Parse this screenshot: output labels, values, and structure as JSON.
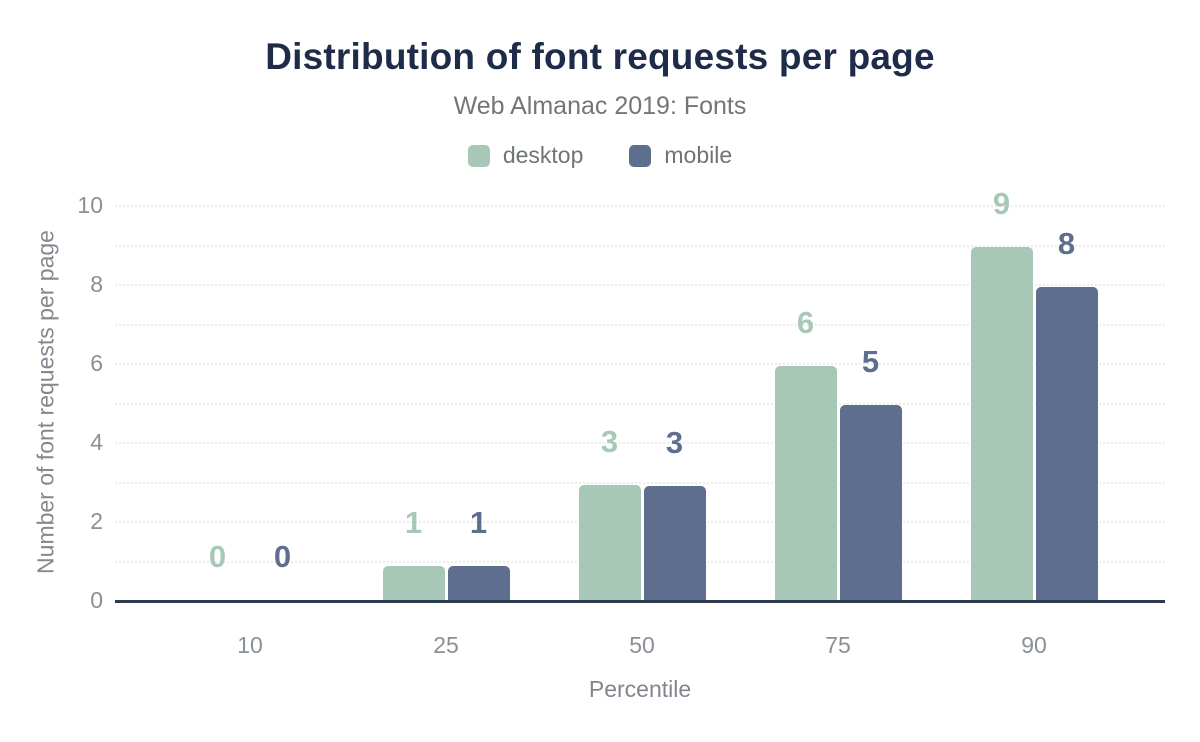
{
  "header": {
    "title": "Distribution of font requests per page",
    "subtitle": "Web Almanac 2019: Fonts"
  },
  "chart_data": {
    "type": "bar",
    "title": "Distribution of font requests per page",
    "subtitle": "Web Almanac 2019: Fonts",
    "categories": [
      "10",
      "25",
      "50",
      "75",
      "90"
    ],
    "series": [
      {
        "name": "desktop",
        "color": "#a7c8b6",
        "values": [
          0,
          1,
          3,
          6,
          9
        ],
        "bar_heights": [
          0,
          0.87,
          2.91,
          5.92,
          8.94
        ]
      },
      {
        "name": "mobile",
        "color": "#5e6e8e",
        "values": [
          0,
          1,
          3,
          5,
          8
        ],
        "bar_heights": [
          0,
          0.85,
          2.88,
          4.94,
          7.92
        ]
      }
    ],
    "xlabel": "Percentile",
    "ylabel": "Number of font requests per page",
    "ylim": [
      0,
      10
    ],
    "yticks": [
      0,
      2,
      4,
      6,
      8,
      10
    ],
    "gridlines": "horizontal, dotted, every 1 unit",
    "legend_position": "top center"
  },
  "colors": {
    "title_text": "#1e2b49",
    "muted_text": "#757575",
    "tick_text": "#8a9096",
    "axis_line": "#2e3a4e",
    "gridline": "#ececec",
    "desktop_series": "#a7c8b6",
    "mobile_series": "#5e6e8e",
    "background": "#ffffff"
  }
}
